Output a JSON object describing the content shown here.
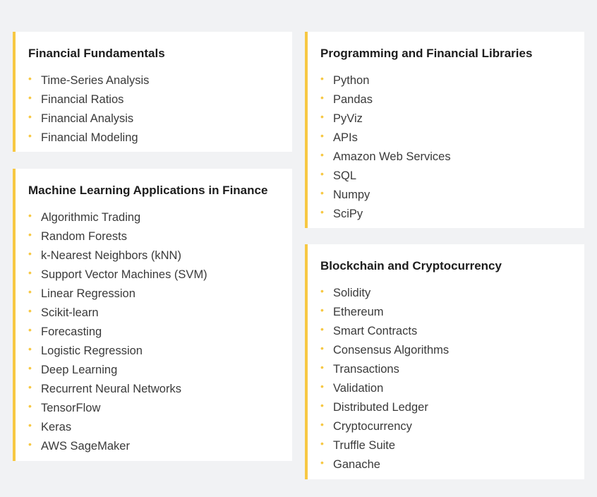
{
  "theme": {
    "accent": "#f7c843",
    "background": "#f1f2f4",
    "card": "#ffffff"
  },
  "cards": [
    {
      "id": "fundamentals",
      "title": "Financial Fundamentals",
      "items": [
        "Time-Series Analysis",
        "Financial Ratios",
        "Financial Analysis",
        "Financial Modeling"
      ]
    },
    {
      "id": "ml",
      "title": "Machine Learning Applications in Finance",
      "items": [
        "Algorithmic Trading",
        "Random Forests",
        "k-Nearest Neighbors (kNN)",
        "Support Vector Machines (SVM)",
        "Linear Regression",
        "Scikit-learn",
        "Forecasting",
        "Logistic Regression",
        "Deep Learning",
        "Recurrent Neural Networks",
        "TensorFlow",
        "Keras",
        "AWS SageMaker"
      ]
    },
    {
      "id": "programming",
      "title": "Programming and Financial Libraries",
      "items": [
        "Python",
        "Pandas",
        "PyViz",
        "APIs",
        "Amazon Web Services",
        "SQL",
        "Numpy",
        "SciPy"
      ]
    },
    {
      "id": "blockchain",
      "title": "Blockchain and Cryptocurrency",
      "items": [
        "Solidity",
        "Ethereum",
        "Smart Contracts",
        "Consensus Algorithms",
        "Transactions",
        "Validation",
        "Distributed Ledger",
        "Cryptocurrency",
        "Truffle Suite",
        "Ganache"
      ]
    }
  ]
}
